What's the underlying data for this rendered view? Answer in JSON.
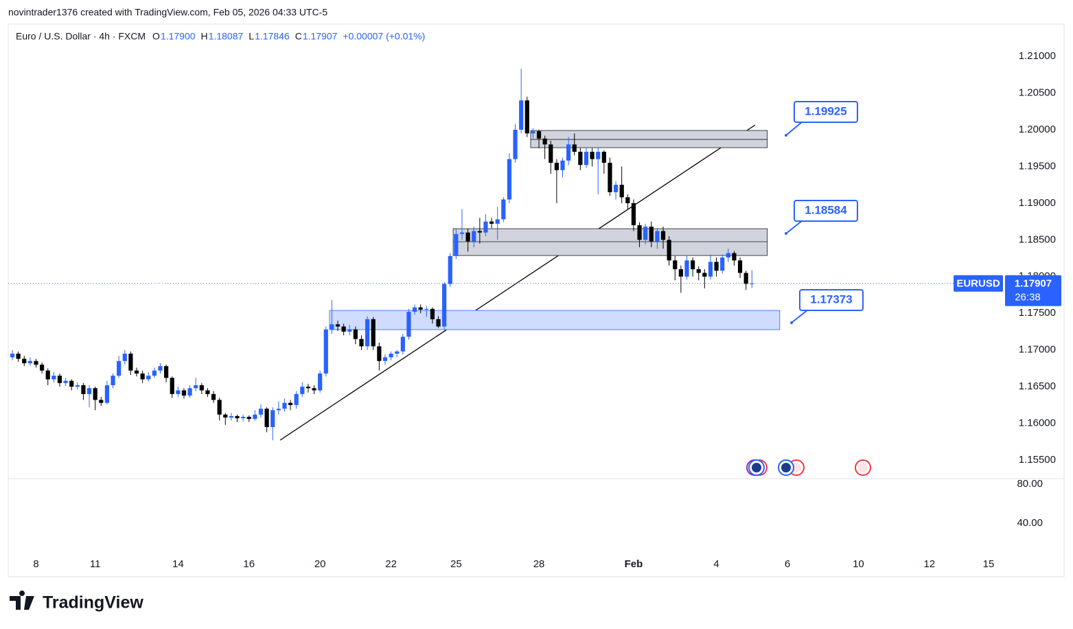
{
  "header": "novintrader1376 created with TradingView.com, Feb 05, 2026 04:33 UTC-5",
  "legend": {
    "symbol": "Euro / U.S. Dollar · 4h · FXCM",
    "items": [
      {
        "key": "O",
        "value": "1.17900"
      },
      {
        "key": "H",
        "value": "1.18087"
      },
      {
        "key": "L",
        "value": "1.17846"
      },
      {
        "key": "C",
        "value": "1.17907"
      }
    ],
    "change": "+0.00007 (+0.01%)"
  },
  "price_tag": {
    "symbol": "EURUSD",
    "price": "1.17907",
    "countdown": "26:38"
  },
  "callouts": [
    "1.19925",
    "1.18584",
    "1.17373"
  ],
  "footer": "TradingView",
  "chart_data": {
    "type": "candlestick",
    "up_color": "#2962ff",
    "down_color": "#000000",
    "xlim": [
      -0.7,
      167.9
    ],
    "xticks": [
      {
        "value": 4,
        "label": "8"
      },
      {
        "value": 14,
        "label": "11"
      },
      {
        "value": 28,
        "label": "14"
      },
      {
        "value": 40,
        "label": "16"
      },
      {
        "value": 52,
        "label": "20"
      },
      {
        "value": 64,
        "label": "22"
      },
      {
        "value": 75,
        "label": "25"
      },
      {
        "value": 89,
        "label": "28"
      },
      {
        "value": 105,
        "label": "Feb"
      },
      {
        "value": 119,
        "label": "4"
      },
      {
        "value": 131,
        "label": "6"
      },
      {
        "value": 143,
        "label": "10"
      },
      {
        "value": 155,
        "label": "12"
      },
      {
        "value": 165,
        "label": "15"
      }
    ],
    "ylim": [
      1.15248,
      1.2144
    ],
    "yticks": [
      {
        "value": 1.21,
        "label": "1.21000"
      },
      {
        "value": 1.205,
        "label": "1.20500"
      },
      {
        "value": 1.2,
        "label": "1.20000"
      },
      {
        "value": 1.195,
        "label": "1.19500"
      },
      {
        "value": 1.19,
        "label": "1.19000"
      },
      {
        "value": 1.185,
        "label": "1.18500"
      },
      {
        "value": 1.18,
        "label": "1.18000"
      },
      {
        "value": 1.175,
        "label": "1.17500"
      },
      {
        "value": 1.17,
        "label": "1.17000"
      },
      {
        "value": 1.165,
        "label": "1.16500"
      },
      {
        "value": 1.16,
        "label": "1.16000"
      },
      {
        "value": 1.155,
        "label": "1.15500"
      }
    ],
    "indicator_ylim": [
      13.3,
      85.6
    ],
    "indicator_yticks": [
      {
        "value": 80,
        "label": "80.00"
      },
      {
        "value": 40,
        "label": "40.00"
      }
    ],
    "zones": [
      {
        "low": 1.19756,
        "high": 1.1999,
        "mid": 1.19868,
        "color": "#d1d4dc"
      },
      {
        "low": 1.18287,
        "high": 1.18652,
        "mid": 1.18475,
        "color": "#d1d4dc"
      },
      {
        "low": 1.17277,
        "high": 1.17539,
        "color": "#cfdcfd"
      }
    ],
    "candles": [
      [
        1.169,
        1.17,
        1.1686,
        1.1695
      ],
      [
        1.1695,
        1.1698,
        1.1684,
        1.1688
      ],
      [
        1.1688,
        1.1692,
        1.1678,
        1.1682
      ],
      [
        1.1682,
        1.169,
        1.1679,
        1.1685
      ],
      [
        1.1685,
        1.1688,
        1.1676,
        1.168
      ],
      [
        1.168,
        1.1683,
        1.1668,
        1.1672
      ],
      [
        1.1672,
        1.1675,
        1.1652,
        1.166
      ],
      [
        1.166,
        1.167,
        1.1656,
        1.1665
      ],
      [
        1.1665,
        1.1668,
        1.165,
        1.1655
      ],
      [
        1.1655,
        1.1662,
        1.1651,
        1.1658
      ],
      [
        1.1658,
        1.166,
        1.1645,
        1.165
      ],
      [
        1.165,
        1.1656,
        1.1646,
        1.1652
      ],
      [
        1.1652,
        1.1655,
        1.1632,
        1.164
      ],
      [
        1.164,
        1.1652,
        1.1622,
        1.1648
      ],
      [
        1.1648,
        1.165,
        1.1618,
        1.1632
      ],
      [
        1.1632,
        1.1636,
        1.1624,
        1.1628
      ],
      [
        1.1628,
        1.1658,
        1.1626,
        1.1652
      ],
      [
        1.1652,
        1.1668,
        1.1648,
        1.1665
      ],
      [
        1.1665,
        1.1692,
        1.1662,
        1.1685
      ],
      [
        1.1685,
        1.17,
        1.168,
        1.1695
      ],
      [
        1.1695,
        1.1698,
        1.1666,
        1.1672
      ],
      [
        1.1672,
        1.1676,
        1.1664,
        1.1668
      ],
      [
        1.1668,
        1.1672,
        1.1655,
        1.166
      ],
      [
        1.166,
        1.167,
        1.1657,
        1.1665
      ],
      [
        1.1665,
        1.1676,
        1.1662,
        1.1672
      ],
      [
        1.1672,
        1.1682,
        1.1668,
        1.1678
      ],
      [
        1.1678,
        1.168,
        1.1656,
        1.1662
      ],
      [
        1.1662,
        1.1664,
        1.1635,
        1.164
      ],
      [
        1.164,
        1.165,
        1.1636,
        1.1645
      ],
      [
        1.1645,
        1.1648,
        1.1634,
        1.1638
      ],
      [
        1.1638,
        1.1652,
        1.1635,
        1.1648
      ],
      [
        1.1648,
        1.1662,
        1.1644,
        1.1652
      ],
      [
        1.1652,
        1.1655,
        1.164,
        1.1645
      ],
      [
        1.1645,
        1.1648,
        1.1636,
        1.164
      ],
      [
        1.164,
        1.1644,
        1.1628,
        1.1632
      ],
      [
        1.1632,
        1.1635,
        1.1604,
        1.1612
      ],
      [
        1.1612,
        1.1614,
        1.1598,
        1.1608
      ],
      [
        1.1608,
        1.1614,
        1.1604,
        1.161
      ],
      [
        1.161,
        1.1612,
        1.1602,
        1.1607
      ],
      [
        1.1607,
        1.1612,
        1.1603,
        1.1609
      ],
      [
        1.1609,
        1.1611,
        1.1602,
        1.1606
      ],
      [
        1.1606,
        1.1618,
        1.1604,
        1.1612
      ],
      [
        1.1612,
        1.1626,
        1.1608,
        1.162
      ],
      [
        1.162,
        1.1622,
        1.1588,
        1.1595
      ],
      [
        1.1595,
        1.1622,
        1.1577,
        1.1618
      ],
      [
        1.1618,
        1.163,
        1.1612,
        1.162
      ],
      [
        1.162,
        1.1634,
        1.1616,
        1.1628
      ],
      [
        1.1628,
        1.1632,
        1.1618,
        1.1625
      ],
      [
        1.1625,
        1.1644,
        1.162,
        1.164
      ],
      [
        1.164,
        1.1656,
        1.1636,
        1.165
      ],
      [
        1.165,
        1.1654,
        1.1642,
        1.1648
      ],
      [
        1.1648,
        1.1652,
        1.164,
        1.1645
      ],
      [
        1.1645,
        1.1672,
        1.1642,
        1.1668
      ],
      [
        1.1668,
        1.1732,
        1.1664,
        1.1728
      ],
      [
        1.1728,
        1.1768,
        1.1722,
        1.1735
      ],
      [
        1.1735,
        1.174,
        1.1726,
        1.1732
      ],
      [
        1.1732,
        1.1736,
        1.172,
        1.1725
      ],
      [
        1.1725,
        1.1734,
        1.172,
        1.1728
      ],
      [
        1.1728,
        1.1732,
        1.1708,
        1.1715
      ],
      [
        1.1715,
        1.172,
        1.17,
        1.1705
      ],
      [
        1.1705,
        1.1746,
        1.17,
        1.1742
      ],
      [
        1.1742,
        1.1745,
        1.17,
        1.1705
      ],
      [
        1.1705,
        1.171,
        1.1672,
        1.1685
      ],
      [
        1.1685,
        1.1694,
        1.168,
        1.169
      ],
      [
        1.169,
        1.1698,
        1.1686,
        1.1695
      ],
      [
        1.1695,
        1.17,
        1.169,
        1.1698
      ],
      [
        1.1698,
        1.1722,
        1.1694,
        1.1718
      ],
      [
        1.1718,
        1.1756,
        1.1714,
        1.1752
      ],
      [
        1.1752,
        1.1762,
        1.1748,
        1.1758
      ],
      [
        1.1758,
        1.1762,
        1.175,
        1.1755
      ],
      [
        1.1755,
        1.176,
        1.1745,
        1.1756
      ],
      [
        1.1756,
        1.1758,
        1.1736,
        1.1742
      ],
      [
        1.1742,
        1.1746,
        1.173,
        1.1732
      ],
      [
        1.1732,
        1.1792,
        1.1728,
        1.179
      ],
      [
        1.179,
        1.1832,
        1.1786,
        1.1828
      ],
      [
        1.1828,
        1.1865,
        1.1824,
        1.1858
      ],
      [
        1.1858,
        1.1892,
        1.185,
        1.186
      ],
      [
        1.186,
        1.1865,
        1.1834,
        1.1848
      ],
      [
        1.1848,
        1.1868,
        1.184,
        1.1862
      ],
      [
        1.1862,
        1.188,
        1.1845,
        1.186
      ],
      [
        1.186,
        1.1885,
        1.1855,
        1.1875
      ],
      [
        1.1875,
        1.188,
        1.1866,
        1.1872
      ],
      [
        1.1872,
        1.1895,
        1.185,
        1.1878
      ],
      [
        1.1878,
        1.1908,
        1.1874,
        1.1905
      ],
      [
        1.1905,
        1.1968,
        1.19,
        1.196
      ],
      [
        1.196,
        1.2008,
        1.1955,
        1.2
      ],
      [
        1.2,
        1.2083,
        1.1995,
        1.204
      ],
      [
        1.204,
        1.2045,
        1.199,
        1.1995
      ],
      [
        1.1995,
        1.2002,
        1.1988,
        1.1998
      ],
      [
        1.1998,
        1.2,
        1.1975,
        1.1988
      ],
      [
        1.1988,
        1.1992,
        1.196,
        1.198
      ],
      [
        1.198,
        1.1985,
        1.194,
        1.1955
      ],
      [
        1.1955,
        1.196,
        1.19,
        1.1945
      ],
      [
        1.1945,
        1.1962,
        1.1935,
        1.1958
      ],
      [
        1.1958,
        1.199,
        1.1952,
        1.198
      ],
      [
        1.198,
        1.1995,
        1.1965,
        1.197
      ],
      [
        1.197,
        1.1975,
        1.1945,
        1.1952
      ],
      [
        1.1952,
        1.1975,
        1.1948,
        1.197
      ],
      [
        1.197,
        1.1975,
        1.195,
        1.196
      ],
      [
        1.196,
        1.1976,
        1.1912,
        1.197
      ],
      [
        1.197,
        1.1972,
        1.194,
        1.1955
      ],
      [
        1.1955,
        1.1962,
        1.191,
        1.1915
      ],
      [
        1.1915,
        1.193,
        1.1905,
        1.1925
      ],
      [
        1.1925,
        1.195,
        1.19,
        1.1908
      ],
      [
        1.1908,
        1.1912,
        1.1892,
        1.19
      ],
      [
        1.19,
        1.1905,
        1.1862,
        1.187
      ],
      [
        1.187,
        1.1874,
        1.184,
        1.185
      ],
      [
        1.185,
        1.1872,
        1.1844,
        1.1868
      ],
      [
        1.1868,
        1.1875,
        1.184,
        1.1848
      ],
      [
        1.1848,
        1.1866,
        1.1838,
        1.1862
      ],
      [
        1.1862,
        1.1868,
        1.1838,
        1.185
      ],
      [
        1.185,
        1.1855,
        1.1815,
        1.1822
      ],
      [
        1.1822,
        1.1828,
        1.1795,
        1.181
      ],
      [
        1.181,
        1.1815,
        1.1778,
        1.18
      ],
      [
        1.18,
        1.1828,
        1.1796,
        1.1822
      ],
      [
        1.1822,
        1.1826,
        1.18,
        1.181
      ],
      [
        1.181,
        1.1814,
        1.1795,
        1.1805
      ],
      [
        1.1805,
        1.181,
        1.1784,
        1.18
      ],
      [
        1.18,
        1.183,
        1.1796,
        1.182
      ],
      [
        1.182,
        1.1826,
        1.18,
        1.1808
      ],
      [
        1.1808,
        1.183,
        1.1804,
        1.1826
      ],
      [
        1.1826,
        1.1838,
        1.182,
        1.1832
      ],
      [
        1.1832,
        1.1835,
        1.1815,
        1.1822
      ],
      [
        1.1822,
        1.1826,
        1.1798,
        1.1805
      ],
      [
        1.1805,
        1.1808,
        1.1782,
        1.179
      ],
      [
        1.179,
        1.18087,
        1.17846,
        1.17907
      ]
    ]
  }
}
